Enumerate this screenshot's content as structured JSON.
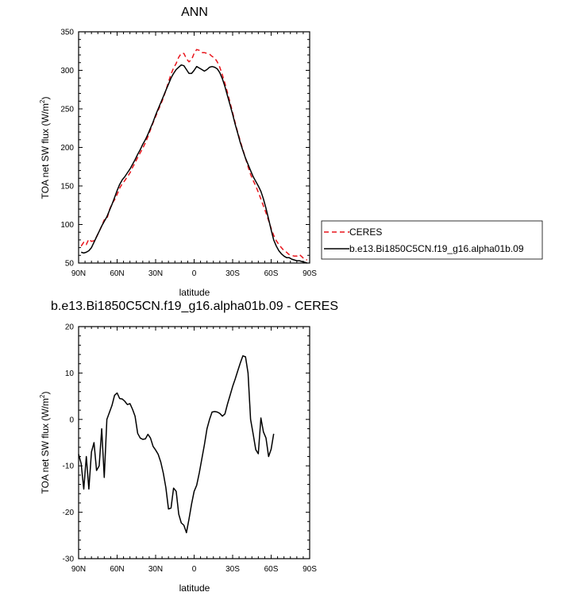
{
  "chart_data": [
    {
      "type": "line",
      "title": "ANN",
      "xlabel": "latitude",
      "ylabel": "TOA net SW flux (W/m",
      "ylabel_sup": "2",
      "ylabel_end": ")",
      "xlim": [
        90,
        -90
      ],
      "ylim": [
        50,
        350
      ],
      "xticks": [
        90,
        60,
        30,
        0,
        -30,
        -60,
        -90
      ],
      "xtick_labels": [
        "90N",
        "60N",
        "30N",
        "0",
        "30S",
        "60S",
        "90S"
      ],
      "yticks": [
        50,
        100,
        150,
        200,
        250,
        300,
        350
      ],
      "ytick_labels": [
        "50",
        "100",
        "150",
        "200",
        "250",
        "300",
        "350"
      ],
      "legend_position": "right-outside",
      "series": [
        {
          "name": "CERES",
          "color": "#e8141b",
          "dash": "dashed",
          "points": [
            [
              88,
              72
            ],
            [
              86,
              77
            ],
            [
              84,
              74
            ],
            [
              82,
              81
            ],
            [
              80,
              78
            ],
            [
              78,
              79
            ],
            [
              76,
              84
            ],
            [
              74,
              91
            ],
            [
              72,
              98
            ],
            [
              70,
              106
            ],
            [
              68,
              107
            ],
            [
              66,
              119
            ],
            [
              64,
              127
            ],
            [
              62,
              132
            ],
            [
              60,
              139
            ],
            [
              58,
              147
            ],
            [
              56,
              153
            ],
            [
              54,
              157
            ],
            [
              52,
              162
            ],
            [
              50,
              167
            ],
            [
              48,
              174
            ],
            [
              46,
              180
            ],
            [
              44,
              187
            ],
            [
              42,
              193
            ],
            [
              40,
              199
            ],
            [
              38,
              206
            ],
            [
              36,
              214
            ],
            [
              34,
              223
            ],
            [
              32,
              232
            ],
            [
              30,
              240
            ],
            [
              28,
              248
            ],
            [
              26,
              256
            ],
            [
              24,
              264
            ],
            [
              22,
              274
            ],
            [
              20,
              285
            ],
            [
              18,
              295
            ],
            [
              16,
              303
            ],
            [
              14,
              309
            ],
            [
              12,
              317
            ],
            [
              10,
              322
            ],
            [
              8,
              322
            ],
            [
              6,
              315
            ],
            [
              4,
              311
            ],
            [
              2,
              314
            ],
            [
              0,
              322
            ],
            [
              -2,
              327
            ],
            [
              -4,
              326
            ],
            [
              -6,
              323
            ],
            [
              -8,
              323
            ],
            [
              -10,
              322
            ],
            [
              -12,
              321
            ],
            [
              -14,
              318
            ],
            [
              -16,
              316
            ],
            [
              -18,
              311
            ],
            [
              -20,
              304
            ],
            [
              -22,
              294
            ],
            [
              -24,
              283
            ],
            [
              -26,
              271
            ],
            [
              -28,
              258
            ],
            [
              -30,
              245
            ],
            [
              -32,
              232
            ],
            [
              -34,
              219
            ],
            [
              -36,
              208
            ],
            [
              -38,
              197
            ],
            [
              -40,
              186
            ],
            [
              -42,
              175
            ],
            [
              -44,
              165
            ],
            [
              -46,
              157
            ],
            [
              -48,
              150
            ],
            [
              -50,
              142
            ],
            [
              -52,
              133
            ],
            [
              -54,
              124
            ],
            [
              -56,
              115
            ],
            [
              -58,
              105
            ],
            [
              -60,
              95
            ],
            [
              -62,
              86
            ],
            [
              -64,
              79
            ],
            [
              -66,
              74
            ],
            [
              -68,
              70
            ],
            [
              -70,
              66
            ],
            [
              -72,
              64
            ],
            [
              -74,
              61
            ],
            [
              -76,
              60
            ],
            [
              -78,
              59
            ],
            [
              -80,
              59
            ],
            [
              -82,
              61
            ],
            [
              -84,
              58
            ],
            [
              -86,
              55
            ],
            [
              -88,
              54
            ]
          ]
        },
        {
          "name": "b.e13.Bi1850C5CN.f19_g16.alpha01b.09",
          "color": "#000000",
          "dash": "solid",
          "points": [
            [
              88,
              64
            ],
            [
              86,
              63
            ],
            [
              84,
              64
            ],
            [
              82,
              66
            ],
            [
              80,
              70
            ],
            [
              78,
              77
            ],
            [
              76,
              84
            ],
            [
              74,
              91
            ],
            [
              72,
              98
            ],
            [
              70,
              104
            ],
            [
              68,
              110
            ],
            [
              66,
              118
            ],
            [
              64,
              126
            ],
            [
              62,
              135
            ],
            [
              60,
              144
            ],
            [
              58,
              152
            ],
            [
              56,
              158
            ],
            [
              54,
              162
            ],
            [
              52,
              167
            ],
            [
              50,
              172
            ],
            [
              48,
              178
            ],
            [
              46,
              184
            ],
            [
              44,
              191
            ],
            [
              42,
              197
            ],
            [
              40,
              204
            ],
            [
              38,
              210
            ],
            [
              36,
              217
            ],
            [
              34,
              225
            ],
            [
              32,
              233
            ],
            [
              30,
              242
            ],
            [
              28,
              250
            ],
            [
              26,
              258
            ],
            [
              24,
              266
            ],
            [
              22,
              274
            ],
            [
              20,
              282
            ],
            [
              18,
              290
            ],
            [
              16,
              296
            ],
            [
              14,
              301
            ],
            [
              12,
              304
            ],
            [
              10,
              307
            ],
            [
              8,
              306
            ],
            [
              6,
              301
            ],
            [
              4,
              296
            ],
            [
              2,
              296
            ],
            [
              0,
              300
            ],
            [
              -2,
              305
            ],
            [
              -4,
              303
            ],
            [
              -6,
              301
            ],
            [
              -8,
              299
            ],
            [
              -10,
              301
            ],
            [
              -12,
              304
            ],
            [
              -14,
              305
            ],
            [
              -16,
              304
            ],
            [
              -18,
              302
            ],
            [
              -20,
              297
            ],
            [
              -22,
              289
            ],
            [
              -24,
              279
            ],
            [
              -26,
              267
            ],
            [
              -28,
              255
            ],
            [
              -30,
              243
            ],
            [
              -32,
              230
            ],
            [
              -34,
              218
            ],
            [
              -36,
              206
            ],
            [
              -38,
              196
            ],
            [
              -40,
              186
            ],
            [
              -42,
              178
            ],
            [
              -44,
              170
            ],
            [
              -46,
              162
            ],
            [
              -48,
              156
            ],
            [
              -50,
              150
            ],
            [
              -52,
              143
            ],
            [
              -54,
              133
            ],
            [
              -56,
              121
            ],
            [
              -58,
              107
            ],
            [
              -60,
              93
            ],
            [
              -62,
              80
            ],
            [
              -64,
              72
            ],
            [
              -66,
              66
            ],
            [
              -68,
              62
            ],
            [
              -70,
              59
            ],
            [
              -72,
              57
            ],
            [
              -74,
              57
            ],
            [
              -76,
              55
            ],
            [
              -78,
              54
            ],
            [
              -80,
              53
            ],
            [
              -82,
              53
            ],
            [
              -84,
              52
            ],
            [
              -86,
              51
            ],
            [
              -88,
              50
            ]
          ]
        }
      ]
    },
    {
      "type": "line",
      "title": "b.e13.Bi1850C5CN.f19_g16.alpha01b.09 - CERES",
      "xlabel": "latitude",
      "ylabel": "TOA net SW flux (W/m",
      "ylabel_sup": "2",
      "ylabel_end": ")",
      "xlim": [
        90,
        -90
      ],
      "ylim": [
        -30,
        20
      ],
      "xticks": [
        90,
        60,
        30,
        0,
        -30,
        -60,
        -90
      ],
      "xtick_labels": [
        "90N",
        "60N",
        "30N",
        "0",
        "30S",
        "60S",
        "90S"
      ],
      "yticks": [
        -30,
        -20,
        -10,
        0,
        10,
        20
      ],
      "ytick_labels": [
        "-30",
        "-20",
        "-10",
        "0",
        "10",
        "20"
      ],
      "series": [
        {
          "color": "#000000",
          "dash": "solid",
          "points": [
            [
              90,
              -7.5
            ],
            [
              88,
              -9.5
            ],
            [
              86,
              -15
            ],
            [
              84,
              -8
            ],
            [
              82,
              -15
            ],
            [
              80,
              -7
            ],
            [
              78,
              -5
            ],
            [
              76,
              -11
            ],
            [
              74,
              -10
            ],
            [
              72,
              -2
            ],
            [
              70,
              -12.5
            ],
            [
              68,
              0
            ],
            [
              66,
              1.5
            ],
            [
              64,
              3
            ],
            [
              62,
              5.2
            ],
            [
              60,
              5.7
            ],
            [
              58,
              4.5
            ],
            [
              56,
              4.4
            ],
            [
              54,
              3.9
            ],
            [
              52,
              3.2
            ],
            [
              50,
              3.4
            ],
            [
              48,
              2.2
            ],
            [
              46,
              0.7
            ],
            [
              44,
              -3
            ],
            [
              42,
              -4
            ],
            [
              40,
              -4.3
            ],
            [
              38,
              -4.2
            ],
            [
              36,
              -3.2
            ],
            [
              34,
              -4
            ],
            [
              32,
              -5.8
            ],
            [
              30,
              -6.6
            ],
            [
              28,
              -7.5
            ],
            [
              26,
              -9.2
            ],
            [
              24,
              -11.6
            ],
            [
              22,
              -14.7
            ],
            [
              20,
              -19.3
            ],
            [
              18,
              -19.1
            ],
            [
              16,
              -14.8
            ],
            [
              14,
              -15.5
            ],
            [
              12,
              -20.4
            ],
            [
              10,
              -22.3
            ],
            [
              8,
              -22.8
            ],
            [
              6,
              -24.4
            ],
            [
              4,
              -21.5
            ],
            [
              2,
              -18.2
            ],
            [
              0,
              -15.5
            ],
            [
              -2,
              -14.2
            ],
            [
              -4,
              -11.5
            ],
            [
              -6,
              -8.5
            ],
            [
              -8,
              -5.5
            ],
            [
              -10,
              -2
            ],
            [
              -12,
              0
            ],
            [
              -14,
              1.6
            ],
            [
              -16,
              1.7
            ],
            [
              -18,
              1.6
            ],
            [
              -20,
              1.3
            ],
            [
              -22,
              0.7
            ],
            [
              -24,
              1.2
            ],
            [
              -26,
              3.3
            ],
            [
              -28,
              5.2
            ],
            [
              -30,
              7.1
            ],
            [
              -32,
              8.7
            ],
            [
              -34,
              10.5
            ],
            [
              -36,
              12.2
            ],
            [
              -38,
              13.7
            ],
            [
              -40,
              13.5
            ],
            [
              -42,
              10
            ],
            [
              -44,
              0
            ],
            [
              -46,
              -3.2
            ],
            [
              -48,
              -6.5
            ],
            [
              -50,
              -7.4
            ],
            [
              -52,
              0.3
            ],
            [
              -54,
              -2.7
            ],
            [
              -56,
              -4
            ],
            [
              -58,
              -8
            ],
            [
              -60,
              -6.4
            ],
            [
              -62,
              -3.1
            ]
          ]
        }
      ]
    }
  ]
}
